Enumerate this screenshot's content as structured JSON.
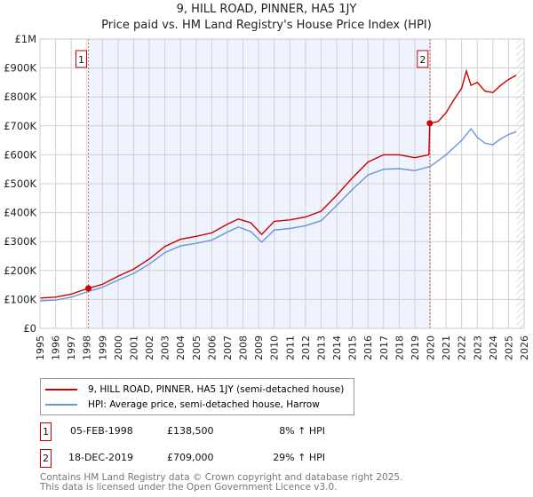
{
  "chart_data": {
    "type": "line",
    "title": "9, HILL ROAD, PINNER, HA5 1JY",
    "subtitle": "Price paid vs. HM Land Registry's House Price Index (HPI)",
    "xlim": [
      1995,
      2026
    ],
    "ylim": [
      0,
      1000000
    ],
    "x_ticks": [
      "1995",
      "1996",
      "1997",
      "1998",
      "1999",
      "2000",
      "2001",
      "2002",
      "2003",
      "2004",
      "2005",
      "2006",
      "2007",
      "2008",
      "2009",
      "2010",
      "2011",
      "2012",
      "2013",
      "2014",
      "2015",
      "2016",
      "2017",
      "2018",
      "2019",
      "2020",
      "2021",
      "2022",
      "2023",
      "2024",
      "2025",
      "2026"
    ],
    "y_ticks": [
      {
        "v": 0,
        "label": "£0"
      },
      {
        "v": 100000,
        "label": "£100K"
      },
      {
        "v": 200000,
        "label": "£200K"
      },
      {
        "v": 300000,
        "label": "£300K"
      },
      {
        "v": 400000,
        "label": "£400K"
      },
      {
        "v": 500000,
        "label": "£500K"
      },
      {
        "v": 600000,
        "label": "£600K"
      },
      {
        "v": 700000,
        "label": "£700K"
      },
      {
        "v": 800000,
        "label": "£800K"
      },
      {
        "v": 900000,
        "label": "£900K"
      },
      {
        "v": 1000000,
        "label": "£1M"
      }
    ],
    "grid": true,
    "series": [
      {
        "name": "9, HILL ROAD, PINNER, HA5 1JY (semi-detached house)",
        "color": "#cc0000",
        "x": [
          1995,
          1996,
          1997,
          1997.5,
          1998.1,
          1999,
          2000,
          2001,
          2002,
          2003,
          2004,
          2005,
          2006,
          2007,
          2007.7,
          2008.5,
          2009.2,
          2010,
          2011,
          2012,
          2013,
          2014,
          2015,
          2016,
          2017,
          2018,
          2019,
          2019.9,
          2019.96,
          2020.5,
          2021,
          2021.5,
          2022,
          2022.3,
          2022.6,
          2023,
          2023.5,
          2024,
          2024.5,
          2025,
          2025.5
        ],
        "y": [
          105000,
          108000,
          118000,
          128000,
          138500,
          152000,
          180000,
          205000,
          240000,
          283000,
          308000,
          318000,
          330000,
          360000,
          378000,
          365000,
          325000,
          370000,
          375000,
          385000,
          405000,
          460000,
          520000,
          575000,
          600000,
          600000,
          590000,
          600000,
          709000,
          715000,
          745000,
          790000,
          830000,
          890000,
          840000,
          850000,
          820000,
          815000,
          840000,
          860000,
          875000
        ]
      },
      {
        "name": "HPI: Average price, semi-detached house, Harrow",
        "color": "#6a96d6",
        "x": [
          1995,
          1996,
          1997,
          1998,
          1999,
          2000,
          2001,
          2002,
          2003,
          2004,
          2005,
          2006,
          2007,
          2007.7,
          2008.5,
          2009.2,
          2010,
          2011,
          2012,
          2013,
          2014,
          2015,
          2016,
          2017,
          2018,
          2019,
          2020,
          2021,
          2022,
          2022.6,
          2023,
          2023.5,
          2024,
          2024.5,
          2025,
          2025.5
        ],
        "y": [
          95000,
          98000,
          108000,
          126000,
          142000,
          167000,
          190000,
          222000,
          262000,
          285000,
          294000,
          305000,
          333000,
          350000,
          335000,
          298000,
          340000,
          345000,
          355000,
          372000,
          425000,
          480000,
          530000,
          550000,
          552000,
          545000,
          560000,
          600000,
          650000,
          690000,
          660000,
          640000,
          635000,
          655000,
          670000,
          680000
        ]
      }
    ],
    "annotations": [
      {
        "label": "1",
        "x": 1998.1,
        "y": 138500
      },
      {
        "label": "2",
        "x": 2019.96,
        "y": 709000
      }
    ]
  },
  "legend": {
    "items": [
      "9, HILL ROAD, PINNER, HA5 1JY (semi-detached house)",
      "HPI: Average price, semi-detached house, Harrow"
    ]
  },
  "table": [
    {
      "num": "1",
      "date": "05-FEB-1998",
      "price": "£138,500",
      "hpi": "8% ↑ HPI"
    },
    {
      "num": "2",
      "date": "18-DEC-2019",
      "price": "£709,000",
      "hpi": "29% ↑ HPI"
    }
  ],
  "footer": {
    "line1": "Contains HM Land Registry data © Crown copyright and database right 2025.",
    "line2": "This data is licensed under the Open Government Licence v3.0."
  }
}
